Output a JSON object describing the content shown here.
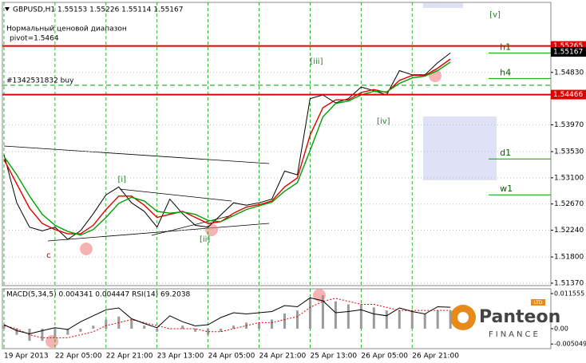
{
  "chart_data": [
    {
      "type": "line",
      "title": "GBPUSD,H1 1.55153 1.55226 1.55114 1.55167",
      "text_labels": [
        "Нормальный ценовой диапазон",
        "pivot=1.5464"
      ],
      "x": [
        0,
        4,
        8,
        12,
        16,
        20,
        24,
        28,
        32,
        36,
        40,
        44,
        48,
        52,
        56,
        60,
        64,
        68,
        72,
        76,
        80,
        84,
        88,
        92,
        96,
        100,
        104,
        108,
        112,
        116,
        120,
        124,
        128,
        132,
        136,
        140
      ],
      "series": [
        {
          "color": "#000000",
          "values": [
            1.5348,
            1.5269,
            1.5229,
            1.5223,
            1.5229,
            1.5209,
            1.5223,
            1.5251,
            1.5282,
            1.5295,
            1.5269,
            1.5255,
            1.5229,
            1.5275,
            1.5251,
            1.5232,
            1.5229,
            1.5249,
            1.5269,
            1.5265,
            1.5269,
            1.5275,
            1.5321,
            1.5315,
            1.544,
            1.5446,
            1.5433,
            1.544,
            1.5459,
            1.5453,
            1.5446,
            1.5486,
            1.5479,
            1.5479,
            1.5499,
            1.5515
          ]
        },
        {
          "color": "#e00000",
          "values": [
            1.534,
            1.53,
            1.526,
            1.5235,
            1.5225,
            1.5218,
            1.5218,
            1.5232,
            1.5258,
            1.528,
            1.528,
            1.5265,
            1.5245,
            1.525,
            1.5255,
            1.5245,
            1.5235,
            1.5238,
            1.5252,
            1.5262,
            1.5266,
            1.5272,
            1.5295,
            1.531,
            1.538,
            1.5425,
            1.5438,
            1.5438,
            1.545,
            1.5455,
            1.545,
            1.547,
            1.5478,
            1.5478,
            1.549,
            1.5505
          ]
        },
        {
          "color": "#00a000",
          "values": [
            1.5345,
            1.5315,
            1.528,
            1.525,
            1.5232,
            1.5222,
            1.5216,
            1.5225,
            1.5245,
            1.5268,
            1.5278,
            1.5272,
            1.5255,
            1.5252,
            1.5254,
            1.525,
            1.524,
            1.5238,
            1.5248,
            1.5258,
            1.5264,
            1.527,
            1.5288,
            1.5302,
            1.5355,
            1.541,
            1.5432,
            1.5436,
            1.5446,
            1.5452,
            1.5451,
            1.5465,
            1.5474,
            1.5477,
            1.5486,
            1.55
          ]
        }
      ],
      "xlim": [
        -0.5,
        171.5
      ],
      "xticks": [
        {
          "value": 0,
          "label": "19 Apr 2013"
        },
        {
          "value": 16,
          "label": "22 Apr 05:00"
        },
        {
          "value": 32,
          "label": "22 Apr 21:00"
        },
        {
          "value": 48,
          "label": "23 Apr 13:00"
        },
        {
          "value": 64,
          "label": "24 Apr 05:00"
        },
        {
          "value": 80,
          "label": "24 Apr 21:00"
        },
        {
          "value": 96,
          "label": "25 Apr 13:00"
        },
        {
          "value": 112,
          "label": "26 Apr 05:00"
        },
        {
          "value": 128,
          "label": "26 Apr 21:00"
        }
      ],
      "ylim": [
        1.5133,
        1.5598
      ],
      "yticks": [
        {
          "value": 1.5137,
          "label": "1.51370"
        },
        {
          "value": 1.518,
          "label": "1.51800"
        },
        {
          "value": 1.5224,
          "label": "1.52240"
        },
        {
          "value": 1.5267,
          "label": "1.52670"
        },
        {
          "value": 1.531,
          "label": "1.53100"
        },
        {
          "value": 1.5353,
          "label": "1.53530"
        },
        {
          "value": 1.5397,
          "label": "1.53970"
        },
        {
          "value": 1.5483,
          "label": "1.54830"
        }
      ],
      "grid": true,
      "hlines": [
        {
          "value": 1.55265,
          "label": "1.55265",
          "color": "#e00000"
        },
        {
          "value": 1.54466,
          "label": "1.54466",
          "color": "#e00000"
        }
      ],
      "buy_line": {
        "value": 1.5462,
        "label": "#1342531832 buy",
        "color": "#00a000"
      },
      "price_label": {
        "value": 1.55167,
        "label": "1.55167"
      },
      "pivot_levels": [
        {
          "label": "h1",
          "value": 1.5515,
          "x_from": 152
        },
        {
          "label": "h4",
          "value": 1.5473,
          "x_from": 152
        },
        {
          "label": "d1",
          "value": 1.5341,
          "x_from": 152
        },
        {
          "label": "w1",
          "value": 1.5282,
          "x_from": 152
        }
      ],
      "annotations": [
        {
          "text": "[i]",
          "x": 37,
          "y": 1.5307
        },
        {
          "text": "[ii]",
          "x": 63,
          "y": 1.5209
        },
        {
          "text": "[iii]",
          "x": 98,
          "y": 1.5501
        },
        {
          "text": "[iv]",
          "x": 119,
          "y": 1.5403
        },
        {
          "text": "[v]",
          "x": 154,
          "y": 1.5578
        },
        {
          "text": "c",
          "x": 14,
          "y": 1.5183
        }
      ]
    },
    {
      "type": "macd",
      "title": "MACD(5,34,5) 0.004341 0.004447  RSI(14) 69.2038",
      "x": [
        0,
        4,
        8,
        12,
        16,
        20,
        24,
        28,
        32,
        36,
        40,
        44,
        48,
        52,
        56,
        60,
        64,
        68,
        72,
        76,
        80,
        84,
        88,
        92,
        96,
        100,
        104,
        108,
        112,
        116,
        120,
        124,
        128,
        132,
        136,
        140
      ],
      "series": [
        {
          "style": "bar",
          "color": "#9a9a9a",
          "values": [
            0.001,
            -0.002,
            -0.004,
            -0.004,
            -0.003,
            -0.002,
            -0.001,
            0.001,
            0.003,
            0.004,
            0.003,
            0.001,
            -0.001,
            0.0,
            0.001,
            -0.001,
            -0.002,
            -0.001,
            0.001,
            0.002,
            0.002,
            0.003,
            0.005,
            0.006,
            0.01,
            0.011,
            0.009,
            0.008,
            0.008,
            0.007,
            0.006,
            0.006,
            0.006,
            0.005,
            0.006,
            0.006
          ]
        },
        {
          "style": "dotted",
          "color": "#e00000",
          "values": [
            0.001,
            0.0,
            -0.002,
            -0.003,
            -0.003,
            -0.003,
            -0.002,
            -0.001,
            0.001,
            0.002,
            0.003,
            0.002,
            0.001,
            0.0,
            0.0,
            0.0,
            -0.001,
            -0.001,
            0.0,
            0.001,
            0.002,
            0.002,
            0.003,
            0.004,
            0.007,
            0.009,
            0.01,
            0.009,
            0.008,
            0.008,
            0.007,
            0.006,
            0.006,
            0.006,
            0.006,
            0.006
          ]
        },
        {
          "style": "line",
          "color": "#000000",
          "axis": "y2",
          "values": [
            40,
            30,
            25,
            30,
            35,
            32,
            45,
            55,
            65,
            68,
            50,
            42,
            35,
            55,
            45,
            38,
            40,
            52,
            60,
            58,
            60,
            62,
            72,
            70,
            85,
            80,
            60,
            62,
            65,
            58,
            55,
            68,
            62,
            58,
            70,
            69.2
          ]
        }
      ],
      "xlim": [
        -0.5,
        171.5
      ],
      "ylim": [
        -0.00657,
        0.01313
      ],
      "yticks": [
        0.011555,
        {
          "value": 0,
          "label": "0.00"
        },
        -0.005049
      ],
      "y2lim": [
        0,
        100
      ]
    }
  ],
  "logo": {
    "name": "Panteon",
    "sub": "FINANCE",
    "badge": "LTD"
  }
}
